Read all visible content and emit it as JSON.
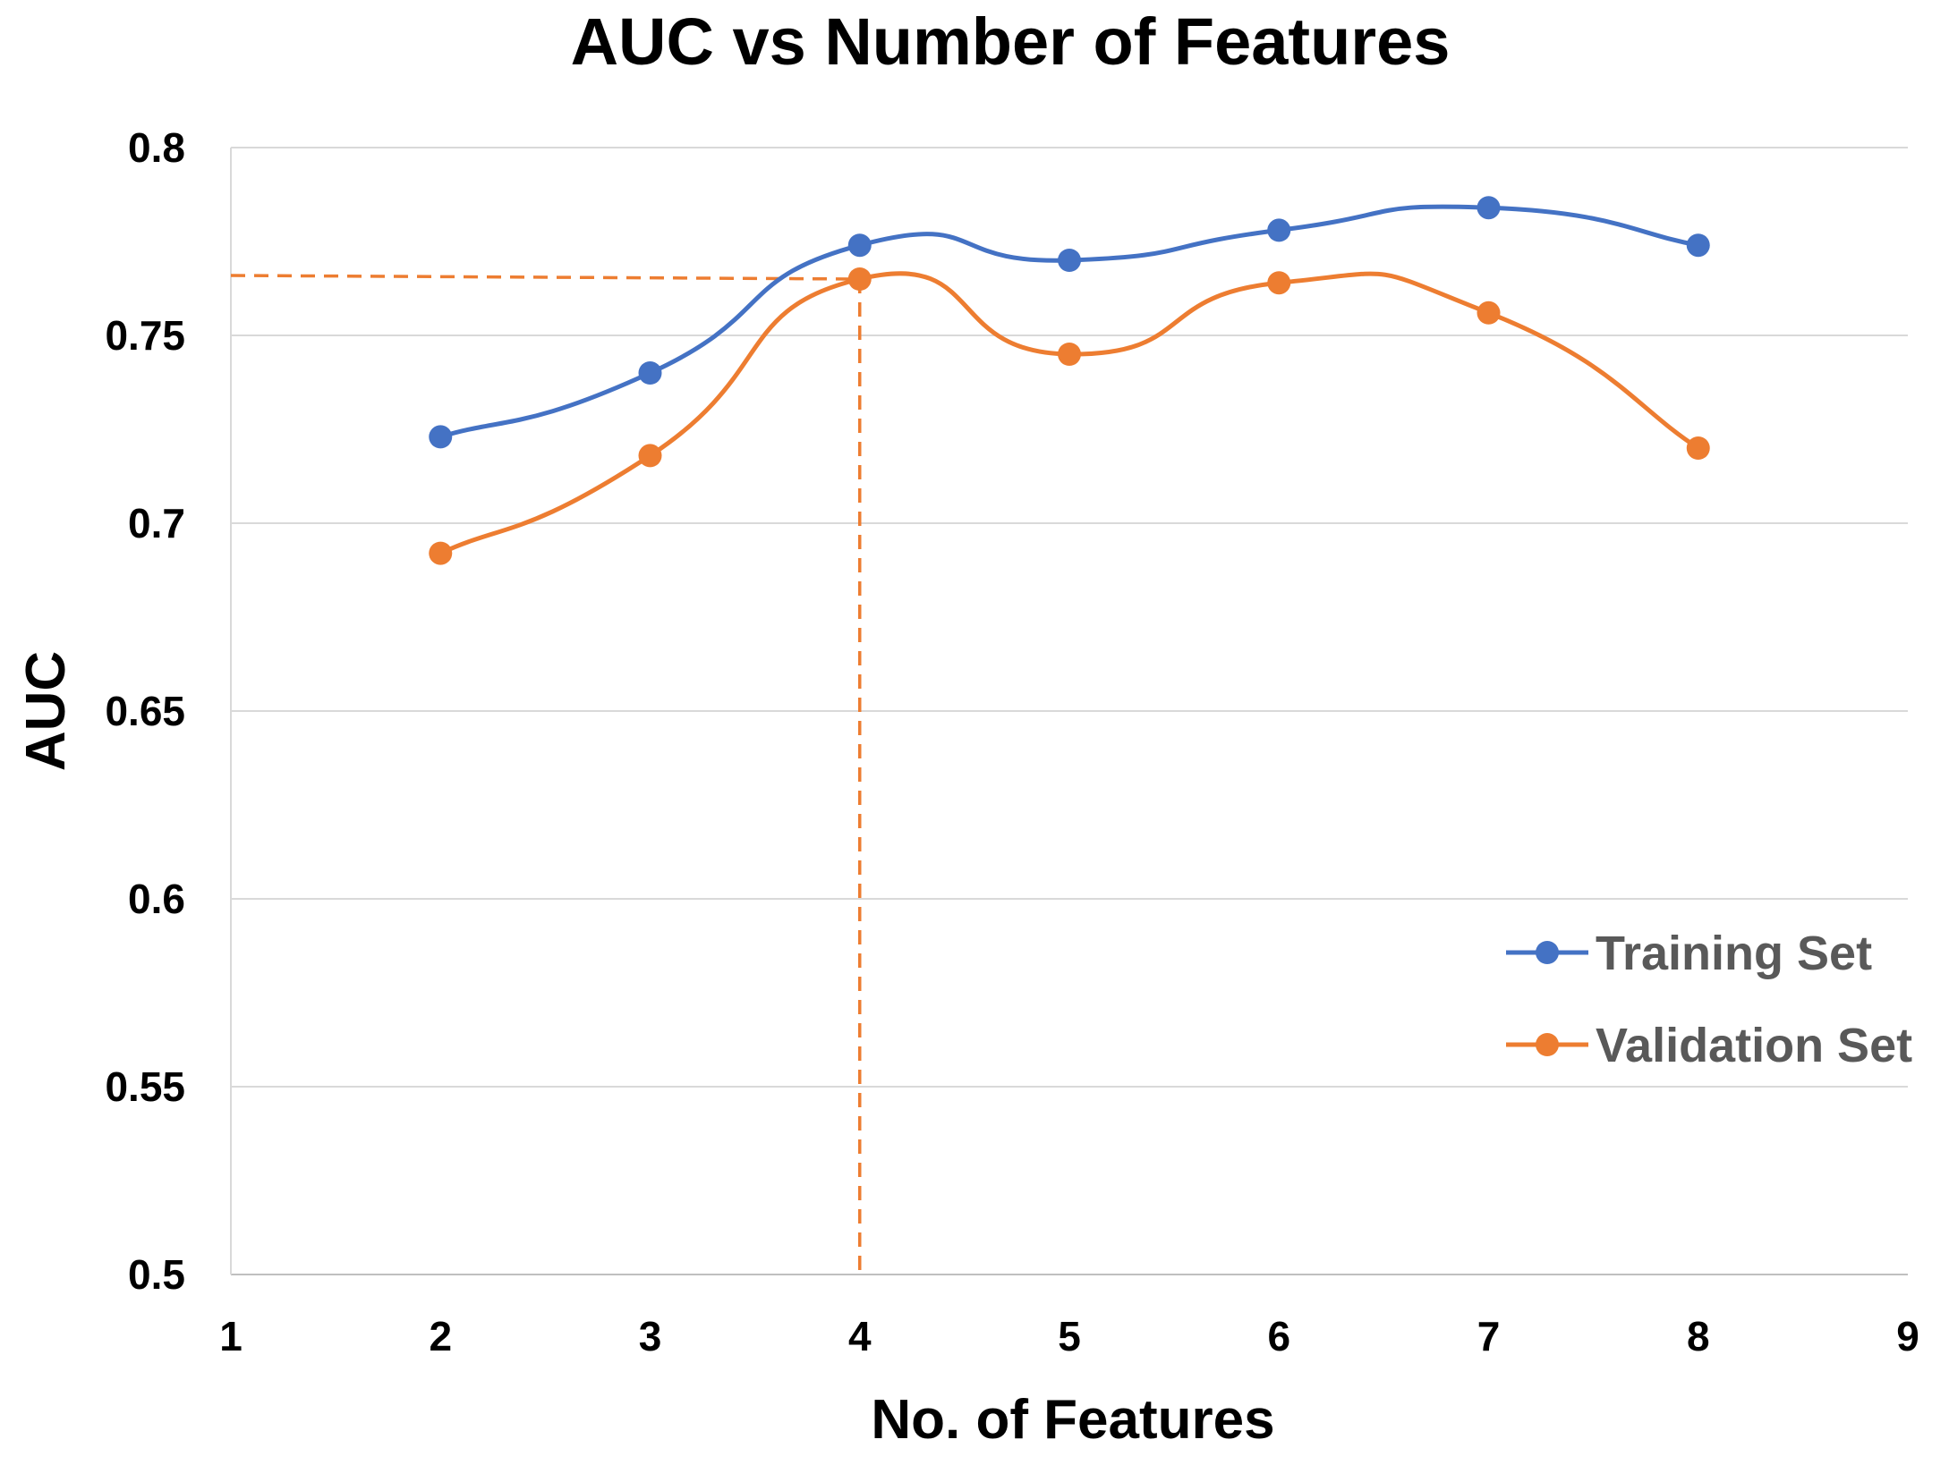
{
  "chart_data": {
    "type": "line",
    "title": "AUC vs Number of Features",
    "xlabel": "No. of Features",
    "ylabel": "AUC",
    "xlim": [
      1,
      9
    ],
    "ylim": [
      0.5,
      0.8
    ],
    "x_ticks": [
      "1",
      "2",
      "3",
      "4",
      "5",
      "6",
      "7",
      "8",
      "9"
    ],
    "y_ticks": [
      "0.5",
      "0.55",
      "0.6",
      "0.65",
      "0.7",
      "0.75",
      "0.8"
    ],
    "grid": "horizontal",
    "legend_position": "right",
    "x": [
      2,
      3,
      4,
      5,
      6,
      7,
      8
    ],
    "series": [
      {
        "name": "Training Set",
        "color": "#4472C4",
        "values": [
          0.723,
          0.74,
          0.774,
          0.77,
          0.778,
          0.784,
          0.774
        ]
      },
      {
        "name": "Validation Set",
        "color": "#ED7D31",
        "values": [
          0.692,
          0.718,
          0.765,
          0.745,
          0.764,
          0.756,
          0.72
        ]
      }
    ],
    "reference_point": {
      "x": 4,
      "y": 0.765,
      "color": "#ED7D31"
    }
  }
}
